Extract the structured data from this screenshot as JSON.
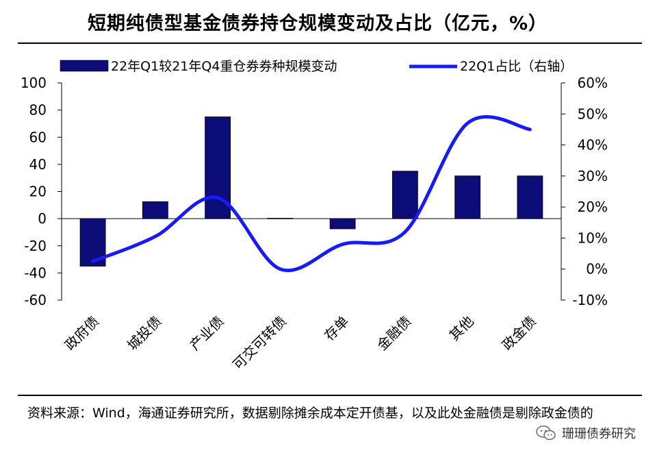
{
  "title": "短期纯债型基金债券持仓规模变动及占比（亿元，%）",
  "source_text": "资料来源：Wind，海通证券研究所，数据剔除摊余成本定开债基，以及此处金融债是剔除政金债的",
  "watermark": "珊珊债券研究",
  "watermark_icon": "wechat-icon",
  "colors": {
    "bar": "#0D0D7A",
    "line": "#1A1AF5"
  },
  "chart_data": {
    "type": "bar",
    "categories": [
      "政府债",
      "城投债",
      "产业债",
      "可交可转债",
      "存单",
      "金融债",
      "其他",
      "政金债"
    ],
    "series": [
      {
        "name": "22年Q1较21年Q4重仓券券种规模变动",
        "type": "bar",
        "axis": "left",
        "values": [
          -35,
          12.5,
          75,
          0.3,
          -7.5,
          35,
          31.5,
          31.5
        ]
      },
      {
        "name": "22Q1占比（右轴）",
        "type": "line",
        "axis": "right",
        "values": [
          2.5,
          10.5,
          23,
          0,
          8,
          12,
          47,
          45
        ]
      }
    ],
    "ylim_left": [
      -60,
      100
    ],
    "yticks_left": [
      -60,
      -40,
      -20,
      0,
      20,
      40,
      60,
      80,
      100
    ],
    "ylim_right": [
      -10,
      60
    ],
    "yticks_right": [
      -10,
      0,
      10,
      20,
      30,
      40,
      50,
      60
    ],
    "right_tick_labels": [
      "-10%",
      "0%",
      "10%",
      "20%",
      "30%",
      "40%",
      "50%",
      "60%"
    ],
    "legend_position": "top",
    "grid": false
  }
}
